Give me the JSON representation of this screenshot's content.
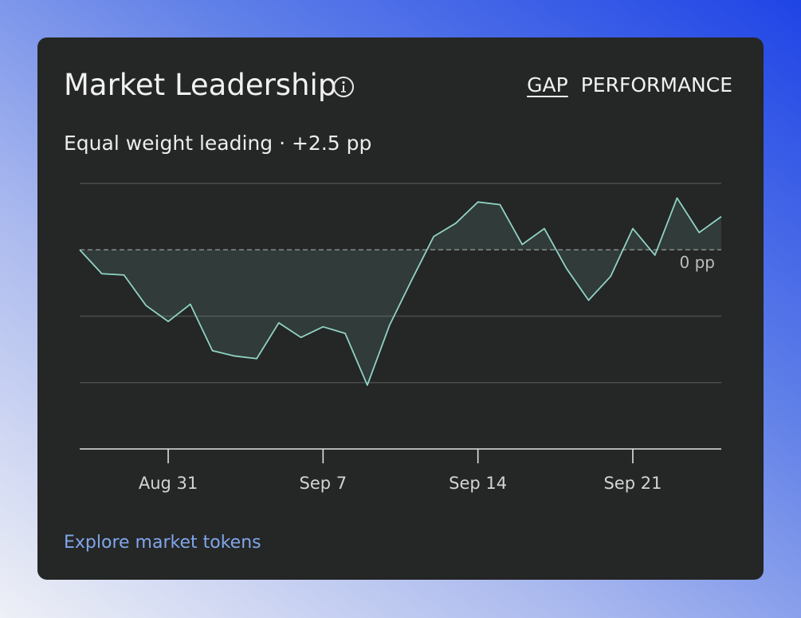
{
  "card": {
    "title": "Market Leadership",
    "tabs": [
      "GAP",
      "PERFORMANCE"
    ],
    "subtitle": "Equal weight leading · +2.5 pp",
    "link": "Explore market tokens"
  },
  "chart_data": {
    "type": "line",
    "color": "#8fd3c4",
    "categories": [
      null,
      null,
      null,
      null,
      "Aug 31",
      null,
      null,
      null,
      null,
      null,
      null,
      "Sep 7",
      null,
      null,
      null,
      null,
      null,
      null,
      "Sep 14",
      null,
      null,
      null,
      null,
      null,
      null,
      "Sep 21",
      null,
      null,
      null,
      null
    ],
    "values": [
      0,
      -1.8,
      -1.9,
      -4.2,
      -5.4,
      -4.1,
      -7.6,
      -8.0,
      -8.2,
      -5.5,
      -6.6,
      -5.8,
      -6.3,
      -10.2,
      -5.7,
      -2.3,
      1.0,
      2.0,
      3.6,
      3.4,
      0.4,
      1.6,
      -1.4,
      -3.8,
      -2.0,
      1.6,
      -0.4,
      3.9,
      1.3,
      2.5
    ],
    "ylim": [
      -15,
      5
    ],
    "yticks": [
      {
        "value": 0,
        "label": "0 pp"
      }
    ],
    "grid_values": [
      5,
      -5,
      -10
    ],
    "grid": true
  }
}
